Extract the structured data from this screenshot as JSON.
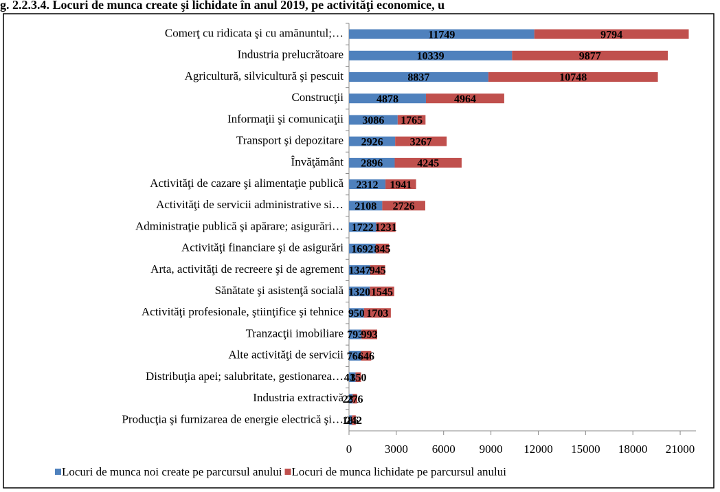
{
  "chart_data": {
    "type": "stacked_barh",
    "title": "g. 2.2.3.4. Locuri de munca create şi lichidate în anul 2019, pe activităţi economice, u",
    "categories": [
      "Comerţ cu ridicata şi cu amănuntul;…",
      "Industria prelucrătoare",
      "Agricultură, silvicultură şi pescuit",
      "Construcţii",
      "Informaţii şi comunicaţii",
      "Transport şi depozitare",
      "Învăţământ",
      "Activităţi de cazare şi alimentaţie publică",
      "Activităţi de servicii administrative si…",
      "Administraţie publică şi apărare; asigurări…",
      "Activităţi financiare şi de asigurări",
      "Arta, activităţi de recreere şi de agrement",
      "Sănătate şi asistenţă socială",
      "Activităţi profesionale, ştiinţifice şi tehnice",
      "Tranzacţii imobiliare",
      "Alte activităţi de servicii",
      "Distribuţia apei; salubritate, gestionarea…",
      "Industria extractivă",
      "Producţia şi furnizarea de energie electrică şi…"
    ],
    "series": [
      {
        "name": "Locuri de munca noi create pe parcursul anului",
        "color": "#4f81bd",
        "values": [
          11749,
          10339,
          8837,
          4878,
          3086,
          2926,
          2896,
          2312,
          2108,
          1722,
          1692,
          1347,
          1320,
          950,
          793,
          764,
          414,
          231,
          186
        ]
      },
      {
        "name": "Locuri de munca lichidate pe parcursul anului",
        "color": "#c0504d",
        "values": [
          9794,
          9877,
          10748,
          4964,
          1765,
          3267,
          4245,
          1941,
          2726,
          1231,
          845,
          945,
          1545,
          1703,
          993,
          646,
          350,
          276,
          242
        ]
      }
    ],
    "xlim": [
      0,
      22000
    ],
    "xticks": [
      0,
      3000,
      6000,
      9000,
      12000,
      15000,
      18000,
      21000
    ],
    "legend": "bottom"
  }
}
